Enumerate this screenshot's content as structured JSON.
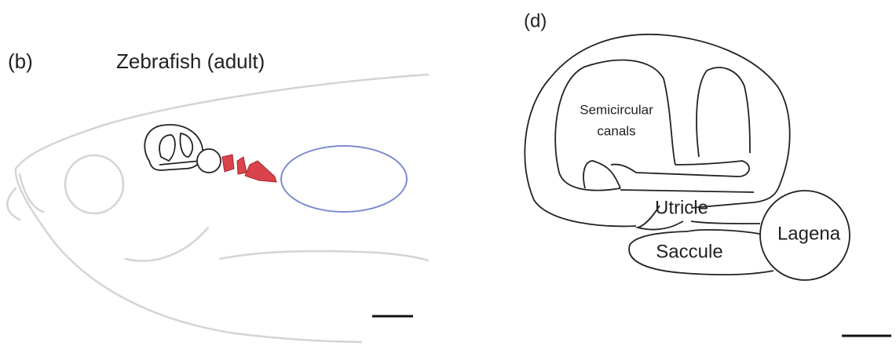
{
  "panels": [
    {
      "label": "(b)",
      "title": "Zebrafish (adult)"
    },
    {
      "label": "(d)",
      "parts": [
        {
          "label_lines": [
            "Semicircular",
            "canals"
          ]
        },
        {
          "label": "Utricle"
        },
        {
          "label": "Saccule"
        },
        {
          "label": "Lagena"
        }
      ]
    }
  ]
}
